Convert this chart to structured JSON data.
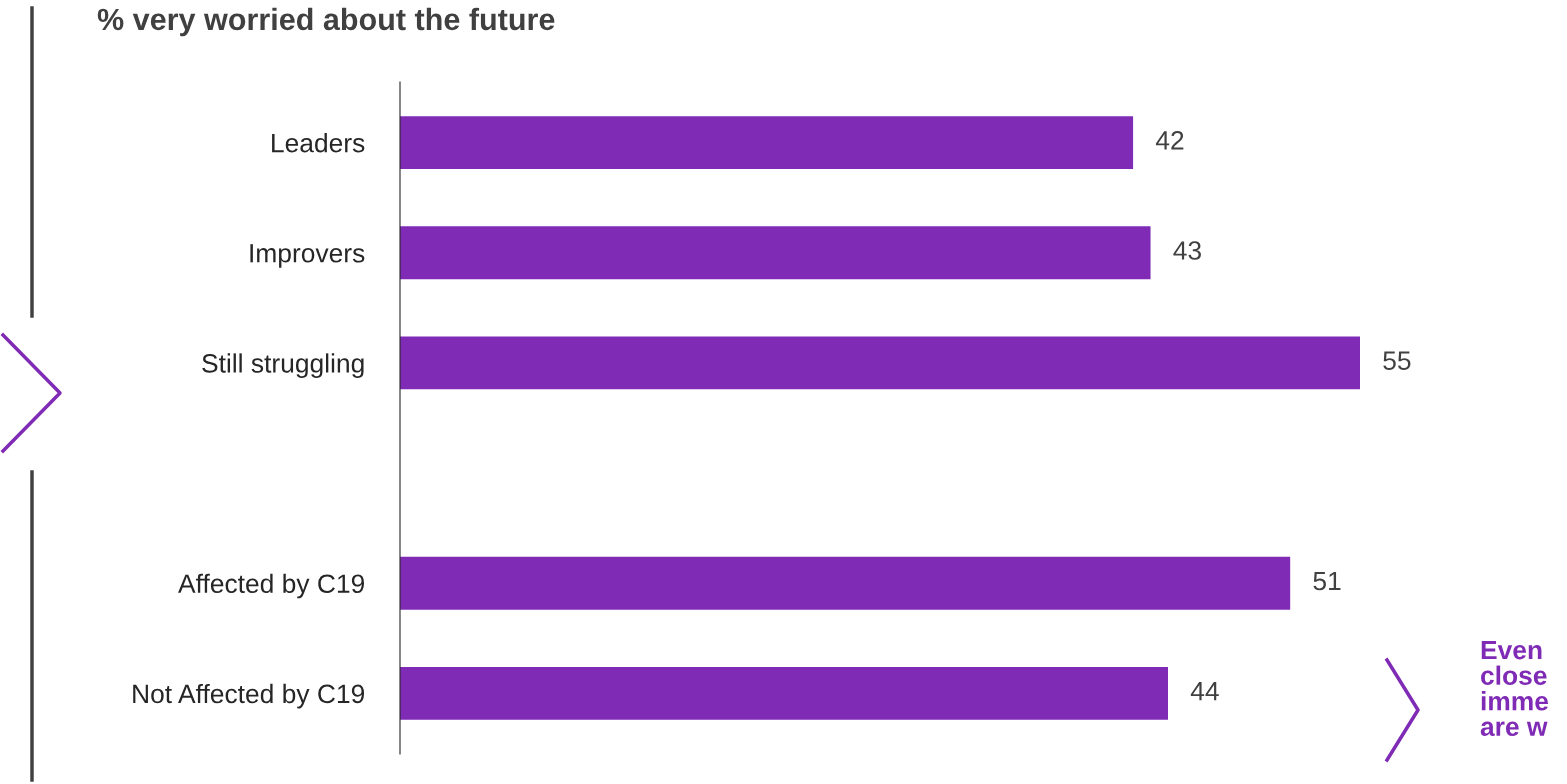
{
  "chart_data": {
    "type": "bar",
    "orientation": "horizontal",
    "title": "% very worried about the future",
    "categories": [
      "Leaders",
      "Improvers",
      "Still struggling",
      null,
      "Affected by C19",
      "Not Affected by C19"
    ],
    "values": [
      42,
      43,
      55,
      null,
      51,
      44
    ],
    "color": "#7f2bb5",
    "data_labels": true,
    "grid": false,
    "legend": false,
    "annotations": [
      "Even\nclose\nimme\nare w"
    ]
  }
}
